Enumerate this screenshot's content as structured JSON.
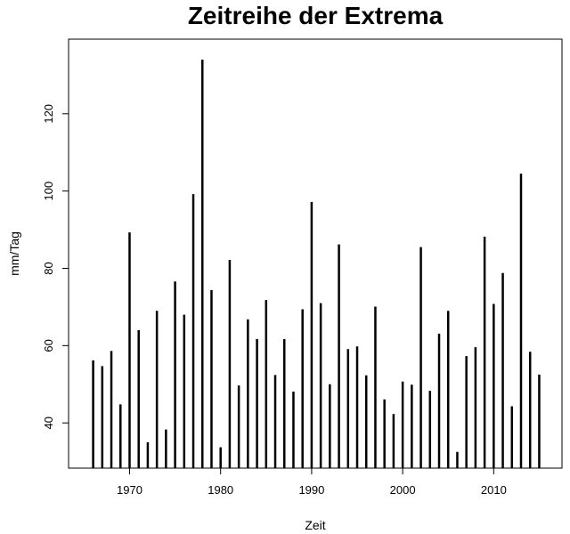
{
  "chart_data": {
    "type": "bar",
    "title": "Zeitreihe der Extrema",
    "xlabel": "Zeit",
    "ylabel": "mm/Tag",
    "xlim": [
      1963.3,
      2017.5
    ],
    "ylim": [
      28.3,
      139.3
    ],
    "xticks": [
      1970,
      1980,
      1990,
      2000,
      2010
    ],
    "yticks": [
      40,
      60,
      80,
      100,
      120
    ],
    "grid": false,
    "baseline": 28.3,
    "x": [
      1966,
      1967,
      1968,
      1969,
      1970,
      1971,
      1972,
      1973,
      1974,
      1975,
      1976,
      1977,
      1978,
      1979,
      1980,
      1981,
      1982,
      1983,
      1984,
      1985,
      1986,
      1987,
      1988,
      1989,
      1990,
      1991,
      1992,
      1993,
      1994,
      1995,
      1996,
      1997,
      1998,
      1999,
      2000,
      2001,
      2002,
      2003,
      2004,
      2005,
      2006,
      2007,
      2008,
      2009,
      2010,
      2011,
      2012,
      2013,
      2014,
      2015
    ],
    "values": [
      56.2,
      54.7,
      58.6,
      44.8,
      89.3,
      64.0,
      35.0,
      69.0,
      38.3,
      76.6,
      68.0,
      99.2,
      134.0,
      74.4,
      33.7,
      82.2,
      49.7,
      66.8,
      61.7,
      71.8,
      52.4,
      61.7,
      48.1,
      69.4,
      97.2,
      71.0,
      50.0,
      86.2,
      59.1,
      59.8,
      52.3,
      70.1,
      46.1,
      42.3,
      50.7,
      49.9,
      85.5,
      48.3,
      63.1,
      69.0,
      32.5,
      57.3,
      59.6,
      88.2,
      70.8,
      78.8,
      44.3,
      104.5,
      58.4,
      52.5
    ]
  }
}
